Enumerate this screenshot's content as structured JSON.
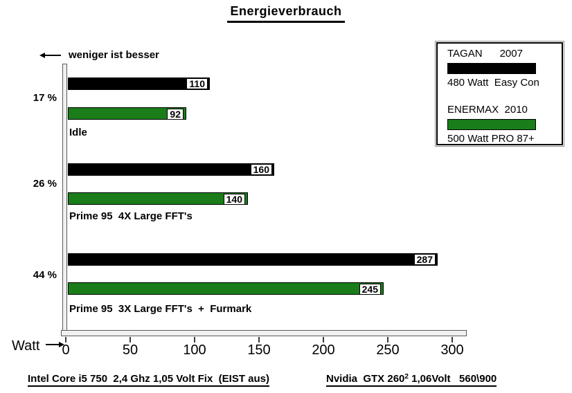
{
  "title": "Energieverbrauch",
  "note": "weniger ist besser",
  "axis": {
    "label": "Watt",
    "ticks": [
      "0",
      "50",
      "100",
      "150",
      "200",
      "250",
      "300"
    ]
  },
  "legend": {
    "items": [
      {
        "name": "TAGAN      2007",
        "desc": "480 Watt  Easy Con",
        "swatch_color": "#000000"
      },
      {
        "name": "ENERMAX  2010",
        "desc": "500 Watt PRO 87+",
        "swatch_color": "#1a7d1a"
      }
    ]
  },
  "chart_data": {
    "type": "bar",
    "orientation": "horizontal",
    "title": "Energieverbrauch",
    "note": "weniger ist besser",
    "categories": [
      "Idle",
      "Prime 95  4X Large FFT's",
      "Prime 95  3X Large FFT's  +  Furmark"
    ],
    "percent_labels": [
      "17 %",
      "26 %",
      "44 %"
    ],
    "series": [
      {
        "name": "TAGAN 2007",
        "desc": "480 Watt Easy Con",
        "color": "#000000",
        "values": [
          110,
          160,
          287
        ]
      },
      {
        "name": "ENERMAX 2010",
        "desc": "500 Watt PRO 87+",
        "color": "#1a7d1a",
        "values": [
          92,
          140,
          245
        ]
      }
    ],
    "xlabel": "Watt",
    "xlim": [
      0,
      300
    ],
    "xticks": [
      0,
      50,
      100,
      150,
      200,
      250,
      300
    ],
    "grid": false,
    "legend_position": "top-right",
    "value_labels": true
  },
  "footer": {
    "left": "Intel Core i5 750  2,4 Ghz 1,05 Volt Fix  (EIST aus)",
    "right_main": "Nvidia  GTX 260",
    "right_sup": "2",
    "right_rest": " 1,06Volt   560\\900"
  }
}
